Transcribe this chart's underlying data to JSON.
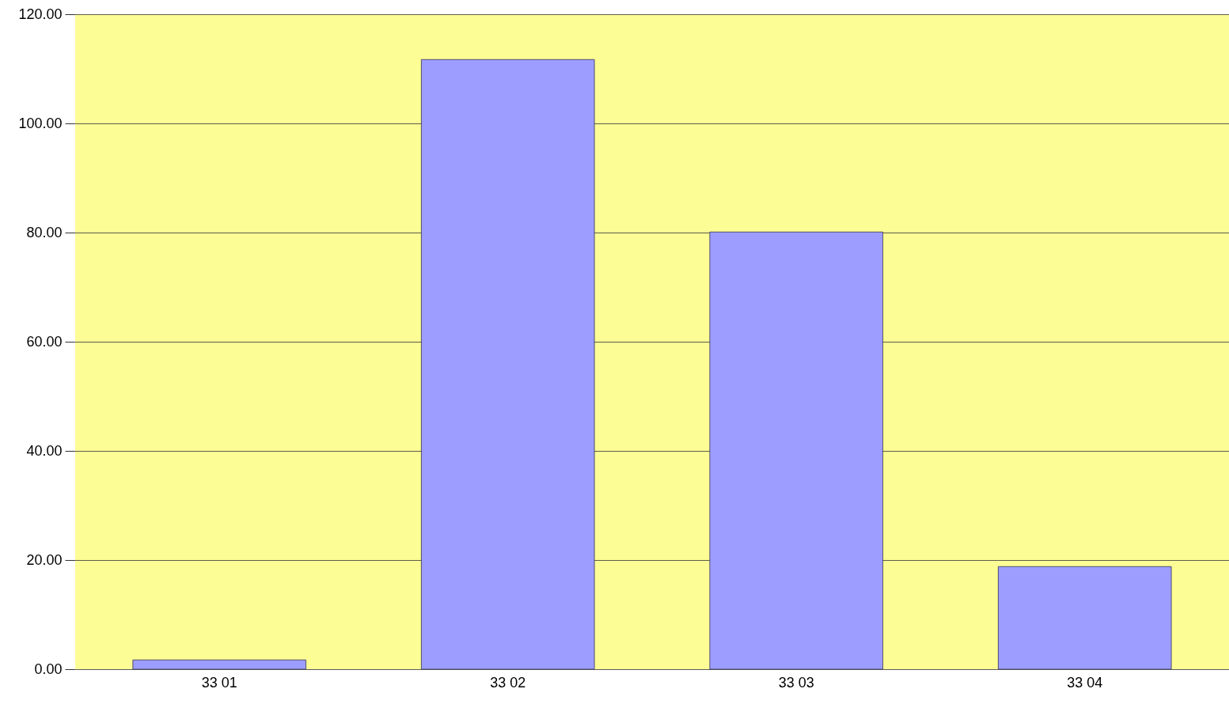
{
  "chart_data": {
    "type": "bar",
    "categories": [
      "33 01",
      "33 02",
      "33 03",
      "33 04"
    ],
    "values": [
      1.7,
      111.7,
      80.1,
      18.8
    ],
    "color": "#9d9dff",
    "ylim": [
      0,
      120
    ],
    "yticks": [
      {
        "value": 0,
        "label": "0.00"
      },
      {
        "value": 20,
        "label": "20.00"
      },
      {
        "value": 40,
        "label": "40.00"
      },
      {
        "value": 60,
        "label": "60.00"
      },
      {
        "value": 80,
        "label": "80.00"
      },
      {
        "value": 100,
        "label": "100.00"
      },
      {
        "value": 120,
        "label": "120.00"
      }
    ],
    "grid": "y"
  }
}
